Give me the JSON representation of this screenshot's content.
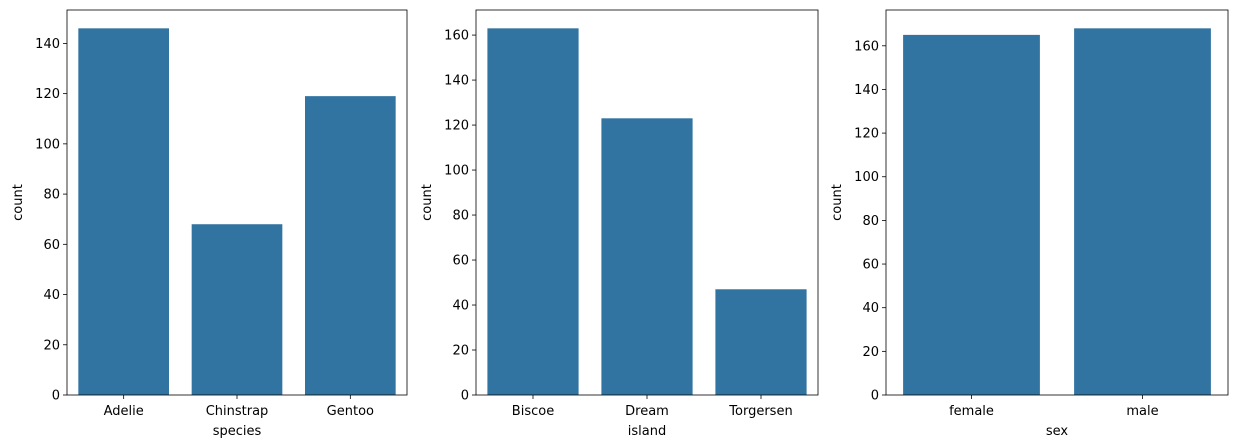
{
  "style": {
    "bar_color": "#3274a1",
    "axis_color": "#000000",
    "background": "#ffffff"
  },
  "chart_data": [
    {
      "type": "bar",
      "categories": [
        "Adelie",
        "Chinstrap",
        "Gentoo"
      ],
      "values": [
        146,
        68,
        119
      ],
      "title": "",
      "xlabel": "species",
      "ylabel": "count",
      "ylim": [
        0,
        153.3
      ],
      "yticks": [
        0,
        20,
        40,
        60,
        80,
        100,
        120,
        140
      ],
      "ytick_labels": [
        "0",
        "20",
        "40",
        "60",
        "80",
        "100",
        "120",
        "140"
      ],
      "grid": false,
      "legend": false
    },
    {
      "type": "bar",
      "categories": [
        "Biscoe",
        "Dream",
        "Torgersen"
      ],
      "values": [
        163,
        123,
        47
      ],
      "title": "",
      "xlabel": "island",
      "ylabel": "count",
      "ylim": [
        0,
        171.15
      ],
      "yticks": [
        0,
        20,
        40,
        60,
        80,
        100,
        120,
        140,
        160
      ],
      "ytick_labels": [
        "0",
        "20",
        "40",
        "60",
        "80",
        "100",
        "120",
        "140",
        "160"
      ],
      "grid": false,
      "legend": false
    },
    {
      "type": "bar",
      "categories": [
        "female",
        "male"
      ],
      "values": [
        165,
        168
      ],
      "title": "",
      "xlabel": "sex",
      "ylabel": "count",
      "ylim": [
        0,
        176.4
      ],
      "yticks": [
        0,
        20,
        40,
        60,
        80,
        100,
        120,
        140,
        160
      ],
      "ytick_labels": [
        "0",
        "20",
        "40",
        "60",
        "80",
        "100",
        "120",
        "140",
        "160"
      ],
      "grid": false,
      "legend": false
    }
  ]
}
